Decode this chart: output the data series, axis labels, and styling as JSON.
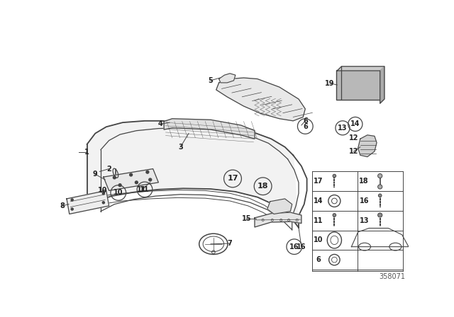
{
  "diagram_id": "358071",
  "bg_color": "#ffffff",
  "lc": "#444444"
}
